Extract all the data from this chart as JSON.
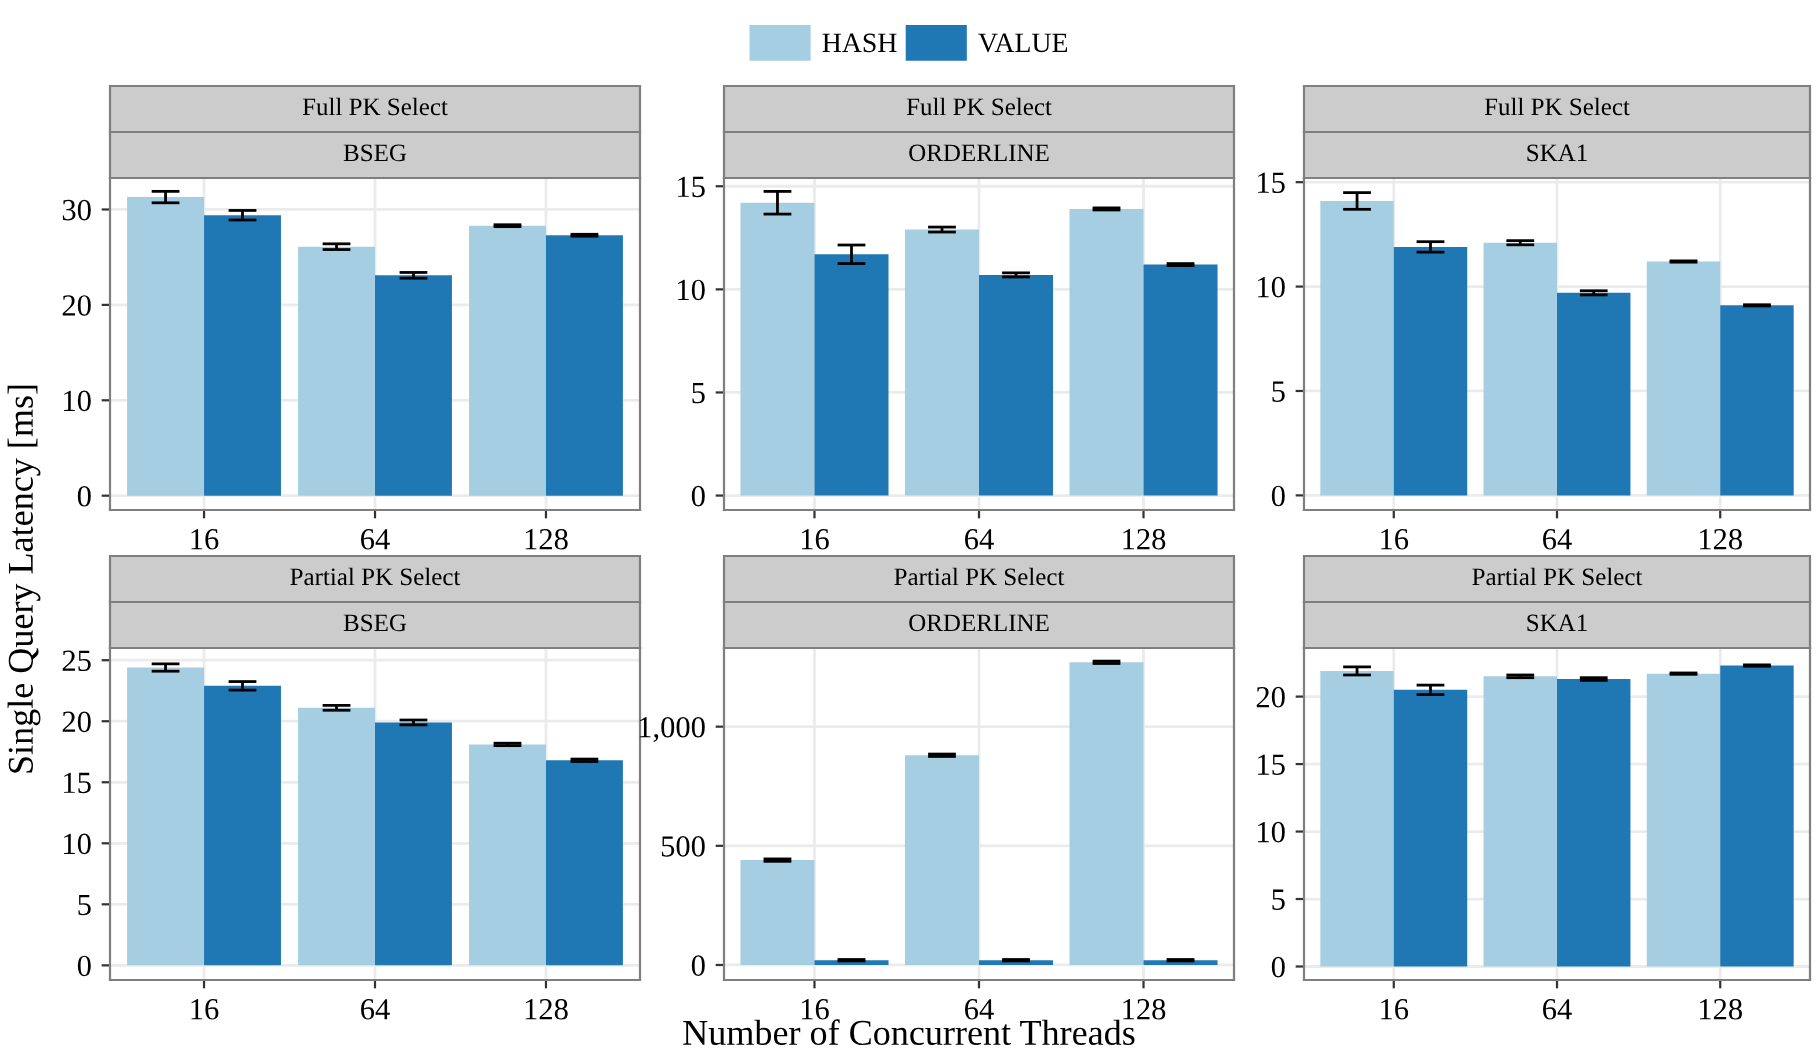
{
  "chart_data": [
    {
      "type": "bar",
      "title": "Full PK Select",
      "subtitle": "BSEG",
      "ylabel": "Single Query Latency [ms]",
      "categories": [
        "16",
        "64",
        "128"
      ],
      "legend": "top",
      "grid": true,
      "ylim": [
        -1.5,
        33.3
      ],
      "yticks": [
        0,
        10,
        20,
        30
      ],
      "series": [
        {
          "name": "HASH",
          "color": "#a6cee3",
          "values": [
            31.3,
            26.1,
            28.3
          ],
          "errors": [
            0.6,
            0.3,
            0.1
          ]
        },
        {
          "name": "VALUE",
          "color": "#1f78b4",
          "values": [
            29.4,
            23.1,
            27.3
          ],
          "errors": [
            0.5,
            0.3,
            0.1
          ]
        }
      ]
    },
    {
      "type": "bar",
      "title": "Full PK Select",
      "subtitle": "ORDERLINE",
      "categories": [
        "16",
        "64",
        "128"
      ],
      "grid": true,
      "ylim": [
        -0.7,
        15.4
      ],
      "yticks": [
        0,
        5,
        10,
        15
      ],
      "series": [
        {
          "color": "#a6cee3",
          "values": [
            14.2,
            12.9,
            13.9
          ],
          "errors": [
            0.55,
            0.12,
            0.05
          ]
        },
        {
          "color": "#1f78b4",
          "values": [
            11.7,
            10.7,
            11.2
          ],
          "errors": [
            0.45,
            0.1,
            0.05
          ]
        }
      ]
    },
    {
      "type": "bar",
      "title": "Full PK Select",
      "subtitle": "SKA1",
      "categories": [
        "16",
        "64",
        "128"
      ],
      "grid": true,
      "ylim": [
        -0.7,
        15.2
      ],
      "yticks": [
        0,
        5,
        10,
        15
      ],
      "series": [
        {
          "color": "#a6cee3",
          "values": [
            14.1,
            12.1,
            11.2
          ],
          "errors": [
            0.4,
            0.1,
            0.03
          ]
        },
        {
          "color": "#1f78b4",
          "values": [
            11.9,
            9.7,
            9.1
          ],
          "errors": [
            0.25,
            0.1,
            0.03
          ]
        }
      ]
    },
    {
      "type": "bar",
      "title": "Partial PK Select",
      "subtitle": "BSEG",
      "categories": [
        "16",
        "64",
        "128"
      ],
      "grid": true,
      "ylim": [
        -1.2,
        26.0
      ],
      "yticks": [
        0,
        5,
        10,
        15,
        20,
        25
      ],
      "series": [
        {
          "color": "#a6cee3",
          "values": [
            24.4,
            21.1,
            18.1
          ],
          "errors": [
            0.3,
            0.2,
            0.1
          ]
        },
        {
          "color": "#1f78b4",
          "values": [
            22.9,
            19.9,
            16.8
          ],
          "errors": [
            0.35,
            0.2,
            0.1
          ]
        }
      ]
    },
    {
      "type": "bar",
      "title": "Partial PK Select",
      "subtitle": "ORDERLINE",
      "xlabel": "Number of Concurrent Threads",
      "categories": [
        "16",
        "64",
        "128"
      ],
      "grid": true,
      "ylim": [
        -63,
        1330
      ],
      "yticks": [
        0,
        500,
        {
          "value": 1000,
          "label": "1,000"
        }
      ],
      "series": [
        {
          "color": "#a6cee3",
          "values": [
            440,
            880,
            1270
          ],
          "errors": [
            5,
            5,
            5
          ]
        },
        {
          "color": "#1f78b4",
          "values": [
            20,
            20,
            20
          ],
          "errors": [
            3,
            3,
            3
          ]
        }
      ]
    },
    {
      "type": "bar",
      "title": "Partial PK Select",
      "subtitle": "SKA1",
      "categories": [
        "16",
        "64",
        "128"
      ],
      "grid": true,
      "ylim": [
        -1.0,
        23.6
      ],
      "yticks": [
        0,
        5,
        10,
        15,
        20
      ],
      "series": [
        {
          "color": "#a6cee3",
          "values": [
            21.9,
            21.5,
            21.7
          ],
          "errors": [
            0.3,
            0.1,
            0.05
          ]
        },
        {
          "color": "#1f78b4",
          "values": [
            20.5,
            21.3,
            22.3
          ],
          "errors": [
            0.35,
            0.1,
            0.05
          ]
        }
      ]
    }
  ]
}
